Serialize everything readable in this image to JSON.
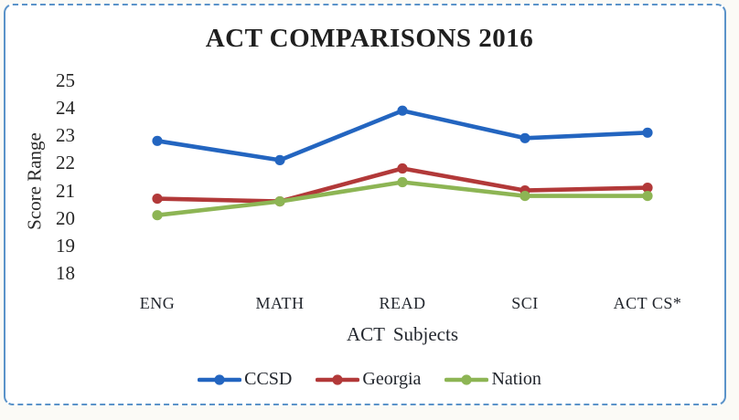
{
  "frame": {
    "border_color": "#5b93c9",
    "background": "#ffffff"
  },
  "chart_data": {
    "type": "line",
    "title": "ACT COMPARISONS 2016",
    "xlabel": "ACT Subjects",
    "ylabel": "Score Range",
    "categories": [
      "ENG",
      "MATH",
      "READ",
      "SCI",
      "ACT CS*"
    ],
    "yticks": [
      25,
      24,
      23,
      22,
      21,
      20,
      19,
      18
    ],
    "ylim": [
      18,
      25
    ],
    "grid": false,
    "legend_position": "bottom",
    "marker": "circle",
    "series": [
      {
        "name": "CCSD",
        "color": "#2365c0",
        "values": [
          22.8,
          22.1,
          23.9,
          22.9,
          23.1
        ]
      },
      {
        "name": "Georgia",
        "color": "#b23939",
        "values": [
          20.7,
          20.6,
          21.8,
          21.0,
          21.1
        ]
      },
      {
        "name": "Nation",
        "color": "#8db554",
        "values": [
          20.1,
          20.6,
          21.3,
          20.8,
          20.8
        ]
      }
    ]
  }
}
